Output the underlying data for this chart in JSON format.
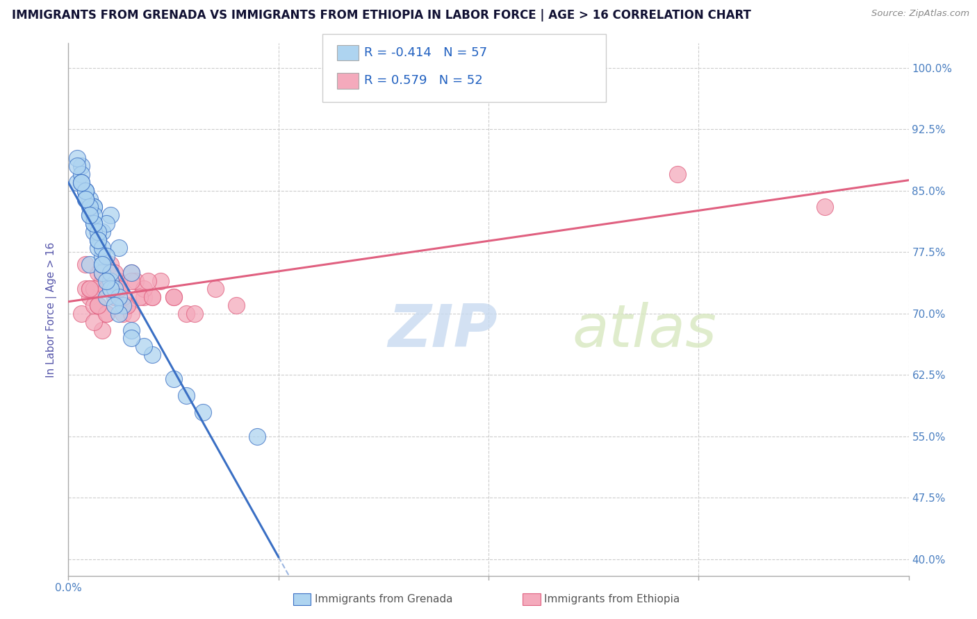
{
  "title": "IMMIGRANTS FROM GRENADA VS IMMIGRANTS FROM ETHIOPIA IN LABOR FORCE | AGE > 16 CORRELATION CHART",
  "source": "Source: ZipAtlas.com",
  "ylabel": "In Labor Force | Age > 16",
  "watermark": "ZIPatlas",
  "legend_entries": [
    {
      "label": "Immigrants from Grenada",
      "color": "#aed4f0",
      "line_color": "#3a6fc4",
      "R": -0.414,
      "N": 57
    },
    {
      "label": "Immigrants from Ethiopia",
      "color": "#f4aabc",
      "line_color": "#e06080",
      "R": 0.579,
      "N": 52
    }
  ],
  "background_color": "#ffffff",
  "grid_color": "#cccccc",
  "tick_label_color": "#4a7fc1",
  "blue_scatter_x": [
    0.2,
    0.5,
    0.3,
    0.8,
    0.4,
    0.6,
    1.0,
    0.7,
    0.9,
    1.2,
    0.5,
    0.3,
    0.8,
    1.5,
    0.6,
    0.4,
    1.0,
    0.7,
    0.2,
    0.9,
    0.3,
    0.6,
    0.8,
    0.4,
    1.1,
    0.5,
    0.7,
    1.3,
    0.6,
    0.8,
    0.2,
    0.4,
    0.6,
    0.8,
    1.0,
    1.2,
    1.5,
    2.0,
    0.9,
    0.7,
    0.5,
    0.3,
    0.8,
    1.0,
    1.8,
    2.5,
    0.6,
    0.9,
    1.2,
    1.5,
    0.4,
    2.8,
    0.7,
    4.5,
    1.1,
    3.2,
    0.5
  ],
  "blue_scatter_y": [
    86,
    84,
    88,
    80,
    85,
    83,
    82,
    79,
    81,
    78,
    76,
    87,
    77,
    75,
    83,
    85,
    74,
    78,
    89,
    72,
    86,
    80,
    75,
    84,
    73,
    82,
    79,
    71,
    81,
    76,
    88,
    85,
    82,
    78,
    75,
    72,
    68,
    65,
    77,
    80,
    83,
    86,
    76,
    73,
    66,
    62,
    81,
    74,
    70,
    67,
    84,
    60,
    79,
    55,
    71,
    58,
    82
  ],
  "pink_scatter_x": [
    0.3,
    0.5,
    0.8,
    1.2,
    0.7,
    1.5,
    0.4,
    0.9,
    1.1,
    0.6,
    0.8,
    1.4,
    0.5,
    1.0,
    1.8,
    0.7,
    1.3,
    0.9,
    2.0,
    1.6,
    0.6,
    1.2,
    0.8,
    1.5,
    2.5,
    0.4,
    1.0,
    0.7,
    1.8,
    1.1,
    0.9,
    2.2,
    1.4,
    0.6,
    1.7,
    0.8,
    2.8,
    0.5,
    1.3,
    1.9,
    0.7,
    3.5,
    1.1,
    2.0,
    1.5,
    0.9,
    4.0,
    2.5,
    1.2,
    3.0,
    14.5,
    18.0
  ],
  "pink_scatter_y": [
    70,
    72,
    68,
    74,
    71,
    75,
    73,
    70,
    72,
    69,
    74,
    71,
    73,
    76,
    72,
    75,
    70,
    73,
    72,
    74,
    71,
    73,
    75,
    70,
    72,
    76,
    74,
    71,
    73,
    72,
    70,
    74,
    71,
    73,
    72,
    75,
    70,
    73,
    72,
    74,
    71,
    73,
    75,
    72,
    74,
    73,
    71,
    72,
    73,
    70,
    87,
    83
  ],
  "ytick_vals": [
    40,
    47.5,
    55,
    62.5,
    70,
    77.5,
    85,
    92.5,
    100
  ],
  "ytick_labels": [
    "40.0%",
    "47.5%",
    "55.0%",
    "62.5%",
    "70.0%",
    "77.5%",
    "85.0%",
    "92.5%",
    "100.0%"
  ],
  "xlim": [
    0,
    20
  ],
  "ylim": [
    38,
    103
  ],
  "xtick_label_left": "0.0%",
  "legend_R_color": "#2060c0"
}
